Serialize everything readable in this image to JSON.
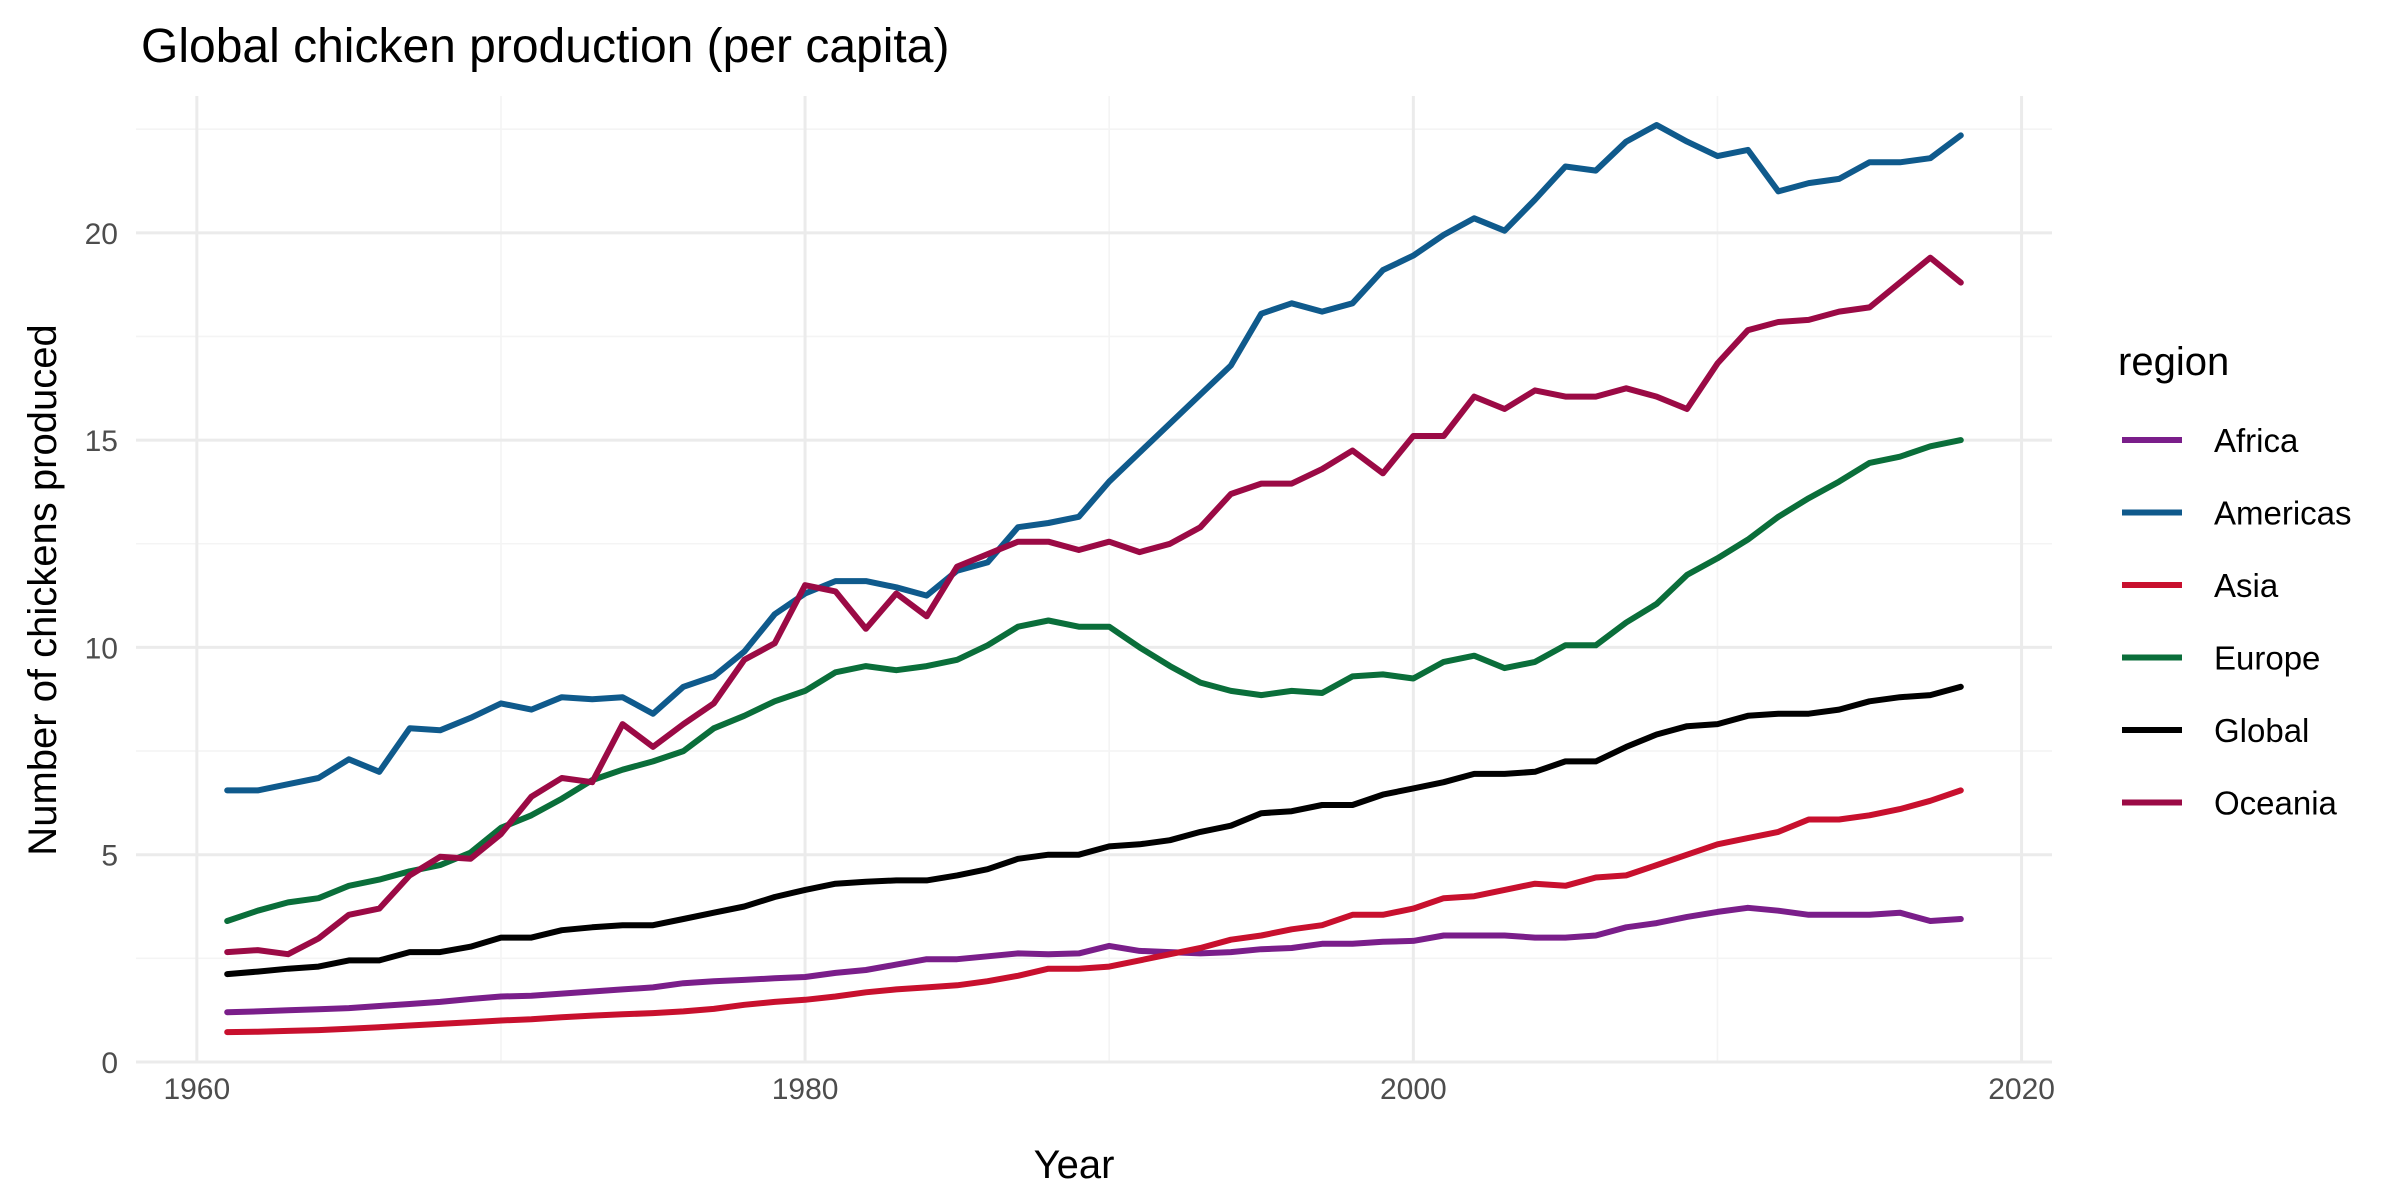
{
  "chart_data": {
    "type": "line",
    "title": "Global chicken production (per capita)",
    "xlabel": "Year",
    "ylabel": "Number of chickens produced",
    "xlim": [
      1958,
      2021
    ],
    "ylim": [
      0,
      23.3
    ],
    "x_ticks": [
      "1960",
      "1980",
      "2000",
      "2020"
    ],
    "x_tick_values": [
      1960,
      1980,
      2000,
      2020
    ],
    "y_ticks": [
      "0",
      "5",
      "10",
      "15",
      "20"
    ],
    "y_tick_values": [
      0,
      5,
      10,
      15,
      20
    ],
    "grid": true,
    "legend": {
      "title": "region",
      "position": "right"
    },
    "x_start": 1961,
    "series": [
      {
        "name": "Africa",
        "color": "#7a1e8a",
        "values": [
          1.2,
          1.22,
          1.25,
          1.27,
          1.3,
          1.35,
          1.4,
          1.45,
          1.52,
          1.58,
          1.6,
          1.65,
          1.7,
          1.75,
          1.8,
          1.9,
          1.95,
          1.98,
          2.02,
          2.05,
          2.15,
          2.22,
          2.35,
          2.48,
          2.48,
          2.55,
          2.62,
          2.6,
          2.62,
          2.8,
          2.68,
          2.65,
          2.62,
          2.65,
          2.72,
          2.75,
          2.85,
          2.85,
          2.9,
          2.92,
          3.05,
          3.05,
          3.05,
          3.0,
          3.0,
          3.05,
          3.25,
          3.35,
          3.5,
          3.62,
          3.72,
          3.65,
          3.55,
          3.55,
          3.55,
          3.6,
          3.4,
          3.45
        ]
      },
      {
        "name": "Americas",
        "color": "#0f5a8c",
        "values": [
          6.55,
          6.55,
          6.7,
          6.85,
          7.3,
          7.0,
          8.05,
          8.0,
          8.3,
          8.65,
          8.5,
          8.8,
          8.75,
          8.8,
          8.4,
          9.05,
          9.3,
          9.9,
          10.8,
          11.3,
          11.6,
          11.6,
          11.45,
          11.25,
          11.85,
          12.05,
          12.9,
          13.0,
          13.15,
          14.0,
          14.7,
          15.4,
          16.1,
          16.8,
          18.05,
          18.3,
          18.1,
          18.3,
          19.1,
          19.45,
          19.95,
          20.35,
          20.05,
          20.8,
          21.6,
          21.5,
          22.2,
          22.6,
          22.2,
          21.85,
          22.0,
          21.0,
          21.2,
          21.3,
          21.7,
          21.7,
          21.8,
          22.35
        ]
      },
      {
        "name": "Asia",
        "color": "#c8102e",
        "values": [
          0.72,
          0.73,
          0.75,
          0.77,
          0.8,
          0.84,
          0.88,
          0.92,
          0.96,
          1.0,
          1.03,
          1.08,
          1.12,
          1.15,
          1.18,
          1.22,
          1.28,
          1.38,
          1.45,
          1.5,
          1.58,
          1.68,
          1.75,
          1.8,
          1.85,
          1.95,
          2.08,
          2.25,
          2.25,
          2.3,
          2.45,
          2.6,
          2.75,
          2.95,
          3.05,
          3.2,
          3.3,
          3.55,
          3.55,
          3.7,
          3.95,
          4.0,
          4.15,
          4.3,
          4.25,
          4.45,
          4.5,
          4.75,
          5.0,
          5.25,
          5.4,
          5.55,
          5.85,
          5.85,
          5.95,
          6.1,
          6.3,
          6.55
        ]
      },
      {
        "name": "Europe",
        "color": "#0a6e3a",
        "values": [
          3.4,
          3.65,
          3.85,
          3.95,
          4.25,
          4.4,
          4.6,
          4.75,
          5.05,
          5.65,
          5.95,
          6.35,
          6.8,
          7.05,
          7.25,
          7.5,
          8.05,
          8.35,
          8.7,
          8.95,
          9.4,
          9.55,
          9.45,
          9.55,
          9.7,
          10.05,
          10.5,
          10.65,
          10.5,
          10.5,
          10.0,
          9.55,
          9.15,
          8.95,
          8.85,
          8.95,
          8.9,
          9.3,
          9.35,
          9.25,
          9.65,
          9.8,
          9.5,
          9.65,
          10.05,
          10.05,
          10.6,
          11.05,
          11.75,
          12.15,
          12.6,
          13.15,
          13.6,
          14.0,
          14.45,
          14.6,
          14.85,
          15.0
        ]
      },
      {
        "name": "Global",
        "color": "#000000",
        "values": [
          2.12,
          2.18,
          2.25,
          2.3,
          2.45,
          2.45,
          2.65,
          2.65,
          2.78,
          3.0,
          3.0,
          3.18,
          3.25,
          3.3,
          3.3,
          3.45,
          3.6,
          3.75,
          3.98,
          4.15,
          4.3,
          4.35,
          4.38,
          4.38,
          4.5,
          4.65,
          4.9,
          5.0,
          5.0,
          5.2,
          5.25,
          5.35,
          5.55,
          5.7,
          6.0,
          6.05,
          6.2,
          6.2,
          6.45,
          6.6,
          6.75,
          6.95,
          6.95,
          7.0,
          7.25,
          7.25,
          7.6,
          7.9,
          8.1,
          8.15,
          8.35,
          8.4,
          8.4,
          8.5,
          8.7,
          8.8,
          8.85,
          9.05
        ]
      },
      {
        "name": "Oceania",
        "color": "#9b0a45",
        "values": [
          2.65,
          2.7,
          2.6,
          2.98,
          3.55,
          3.7,
          4.5,
          4.95,
          4.9,
          5.5,
          6.4,
          6.85,
          6.75,
          8.15,
          7.6,
          8.15,
          8.65,
          9.7,
          10.1,
          11.5,
          11.35,
          10.45,
          11.3,
          10.75,
          11.95,
          12.25,
          12.55,
          12.55,
          12.35,
          12.55,
          12.3,
          12.5,
          12.9,
          13.7,
          13.95,
          13.95,
          14.3,
          14.75,
          14.2,
          15.1,
          15.1,
          16.05,
          15.75,
          16.2,
          16.05,
          16.05,
          16.25,
          16.05,
          15.75,
          16.85,
          17.65,
          17.85,
          17.9,
          18.1,
          18.2,
          18.8,
          19.4,
          18.8
        ]
      }
    ]
  }
}
